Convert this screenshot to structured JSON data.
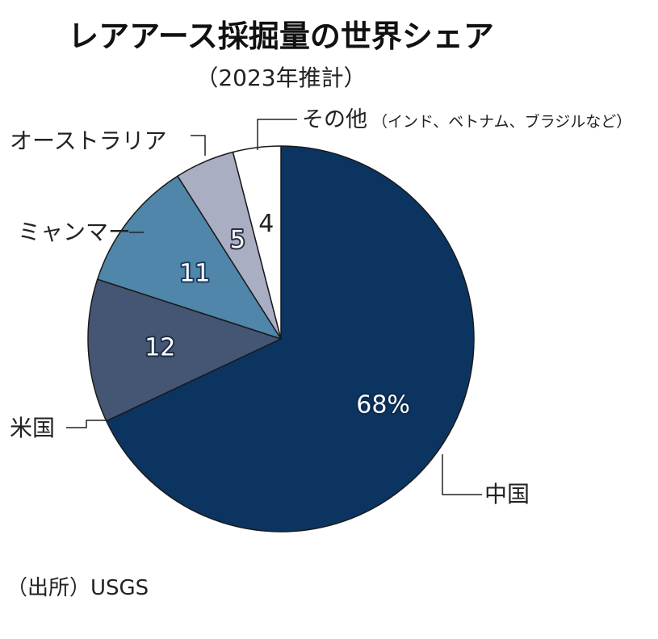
{
  "chart_data": {
    "type": "pie",
    "title": "レアアース採掘量の世界シェア",
    "subtitle": "（2023年推計）",
    "source": "（出所）USGS",
    "slices": [
      {
        "label": "中国",
        "value": 68,
        "value_label": "68%",
        "color": "#0b3461",
        "text_color": "#ffffff",
        "halo": "#0b2a4e"
      },
      {
        "label": "米国",
        "value": 12,
        "value_label": "12",
        "color": "#445673",
        "text_color": "#ffffff",
        "halo": "#1e2d46"
      },
      {
        "label": "ミャンマー",
        "value": 11,
        "value_label": "11",
        "color": "#4f86aa",
        "text_color": "#ffffff",
        "halo": "#1e3d5e"
      },
      {
        "label": "オーストラリア",
        "value": 5,
        "value_label": "5",
        "color": "#a9aec2",
        "text_color": "#ffffff",
        "halo": "#2a2f45"
      },
      {
        "label": "その他",
        "label_note": "（インド、ベトナム、ブラジルなど）",
        "value": 4,
        "value_label": "4",
        "color": "#ffffff",
        "text_color": "#222222",
        "halo": ""
      }
    ]
  }
}
